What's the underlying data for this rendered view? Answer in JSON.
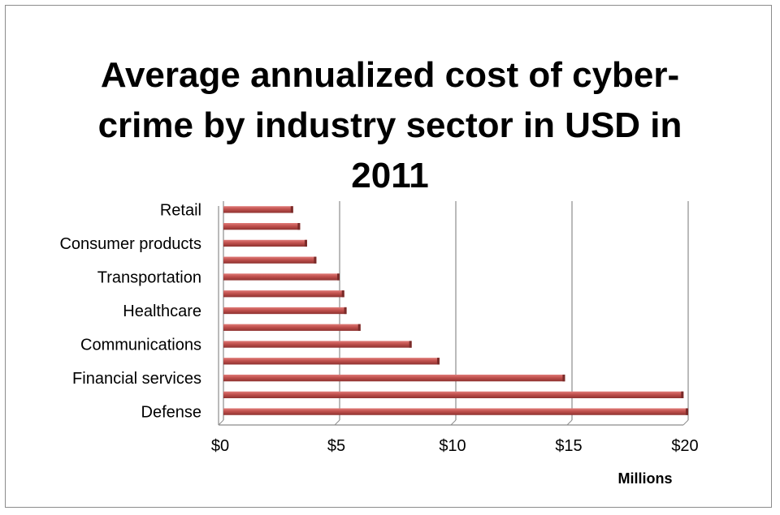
{
  "chart_data": {
    "type": "bar",
    "orientation": "horizontal",
    "title_lines": [
      "Average annualized cost of cyber-",
      "crime by industry sector in USD in",
      "2011"
    ],
    "title": "Average annualized cost of cyber-crime by industry sector in USD in 2011",
    "xlabel": "Millions",
    "ylabel": "",
    "xlim": [
      0,
      20
    ],
    "x_ticks": [
      0,
      5,
      10,
      15,
      20
    ],
    "x_tick_labels": [
      "$0",
      "$5",
      "$10",
      "$15",
      "$20"
    ],
    "categories": [
      "Defense",
      "",
      "Financial services",
      "",
      "Communications",
      "",
      "Healthcare",
      "",
      "Transportation",
      "",
      "Consumer products",
      "",
      "Retail"
    ],
    "values": [
      20.0,
      19.8,
      14.7,
      9.3,
      8.1,
      5.9,
      5.3,
      5.2,
      5.0,
      4.0,
      3.6,
      3.3,
      3.0
    ],
    "grid": true,
    "legend": "none",
    "bar_color": "#c0504d"
  }
}
